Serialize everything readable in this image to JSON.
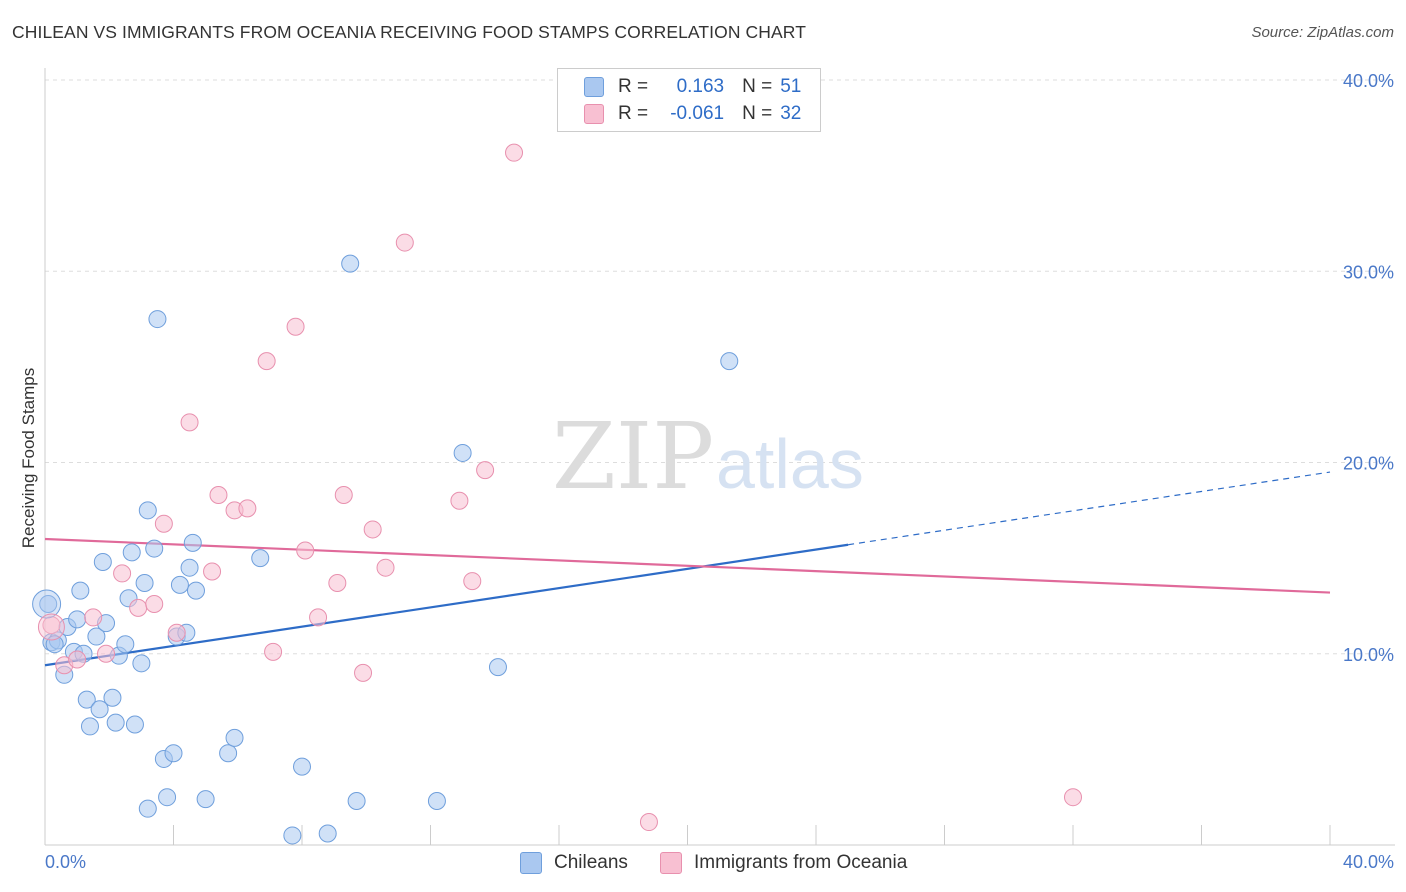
{
  "header": {
    "title": "CHILEAN VS IMMIGRANTS FROM OCEANIA RECEIVING FOOD STAMPS CORRELATION CHART",
    "source": "Source: ZipAtlas.com"
  },
  "watermark": {
    "zip": "ZIP",
    "atlas": "atlas"
  },
  "legend": {
    "rows": [
      {
        "r_label": "R =",
        "r_value": "0.163",
        "n_label": "N =",
        "n_value": "51",
        "color": "#aac8f0",
        "border": "#6f9fdc"
      },
      {
        "r_label": "R =",
        "r_value": "-0.061",
        "n_label": "N =",
        "n_value": "32",
        "color": "#f8c0d2",
        "border": "#e890ae"
      }
    ]
  },
  "bottom_legend": {
    "items": [
      {
        "label": "Chileans",
        "color": "#aac8f0",
        "border": "#6f9fdc"
      },
      {
        "label": "Immigrants from Oceania",
        "color": "#f8c0d2",
        "border": "#e890ae"
      }
    ]
  },
  "chart_data": {
    "type": "scatter",
    "title": "CHILEAN VS IMMIGRANTS FROM OCEANIA RECEIVING FOOD STAMPS CORRELATION CHART",
    "xlabel": "",
    "ylabel": "Receiving Food Stamps",
    "xlim": [
      0,
      40
    ],
    "ylim": [
      0,
      40
    ],
    "x_tick_labels": [
      "0.0%",
      "40.0%"
    ],
    "y_tick_labels": [
      "10.0%",
      "20.0%",
      "30.0%",
      "40.0%"
    ],
    "y_ticks": [
      10,
      20,
      30,
      40
    ],
    "grid": true,
    "series": [
      {
        "name": "Chileans",
        "color": "#aac8f0",
        "edge": "#6f9fdc",
        "points": [
          [
            0.1,
            12.6
          ],
          [
            0.2,
            10.6
          ],
          [
            0.4,
            10.7
          ],
          [
            0.6,
            8.9
          ],
          [
            0.7,
            11.4
          ],
          [
            0.9,
            10.1
          ],
          [
            1.0,
            11.8
          ],
          [
            1.1,
            13.3
          ],
          [
            1.2,
            10.0
          ],
          [
            1.3,
            7.6
          ],
          [
            1.4,
            6.2
          ],
          [
            1.6,
            10.9
          ],
          [
            1.7,
            7.1
          ],
          [
            1.8,
            14.8
          ],
          [
            1.9,
            11.6
          ],
          [
            2.1,
            7.7
          ],
          [
            2.2,
            6.4
          ],
          [
            2.3,
            9.9
          ],
          [
            2.5,
            10.5
          ],
          [
            2.6,
            12.9
          ],
          [
            2.7,
            15.3
          ],
          [
            2.8,
            6.3
          ],
          [
            3.0,
            9.5
          ],
          [
            3.1,
            13.7
          ],
          [
            3.2,
            1.9
          ],
          [
            3.2,
            17.5
          ],
          [
            3.4,
            15.5
          ],
          [
            3.5,
            27.5
          ],
          [
            3.7,
            4.5
          ],
          [
            3.8,
            2.5
          ],
          [
            4.0,
            4.8
          ],
          [
            4.1,
            10.9
          ],
          [
            4.2,
            13.6
          ],
          [
            4.4,
            11.1
          ],
          [
            4.5,
            14.5
          ],
          [
            4.6,
            15.8
          ],
          [
            4.7,
            13.3
          ],
          [
            5.0,
            2.4
          ],
          [
            5.7,
            4.8
          ],
          [
            5.9,
            5.6
          ],
          [
            6.7,
            15.0
          ],
          [
            7.7,
            0.5
          ],
          [
            8.0,
            4.1
          ],
          [
            8.8,
            0.6
          ],
          [
            9.5,
            30.4
          ],
          [
            9.7,
            2.3
          ],
          [
            12.2,
            2.3
          ],
          [
            13.0,
            20.5
          ],
          [
            14.1,
            9.3
          ],
          [
            21.3,
            25.3
          ],
          [
            0.3,
            10.5
          ]
        ]
      },
      {
        "name": "Immigrants from Oceania",
        "color": "#f8c0d2",
        "edge": "#e890ae",
        "points": [
          [
            0.2,
            11.5
          ],
          [
            0.6,
            9.4
          ],
          [
            1.0,
            9.7
          ],
          [
            1.5,
            11.9
          ],
          [
            1.9,
            10.0
          ],
          [
            2.4,
            14.2
          ],
          [
            2.9,
            12.4
          ],
          [
            3.4,
            12.6
          ],
          [
            3.7,
            16.8
          ],
          [
            4.1,
            11.1
          ],
          [
            4.5,
            22.1
          ],
          [
            5.2,
            14.3
          ],
          [
            5.4,
            18.3
          ],
          [
            5.9,
            17.5
          ],
          [
            6.3,
            17.6
          ],
          [
            6.9,
            25.3
          ],
          [
            7.1,
            10.1
          ],
          [
            7.8,
            27.1
          ],
          [
            8.1,
            15.4
          ],
          [
            8.5,
            11.9
          ],
          [
            9.1,
            13.7
          ],
          [
            9.3,
            18.3
          ],
          [
            9.9,
            9.0
          ],
          [
            10.2,
            16.5
          ],
          [
            10.6,
            14.5
          ],
          [
            11.2,
            31.5
          ],
          [
            12.9,
            18.0
          ],
          [
            13.3,
            13.8
          ],
          [
            13.7,
            19.6
          ],
          [
            14.6,
            36.2
          ],
          [
            18.8,
            1.2
          ],
          [
            32.0,
            2.5
          ]
        ]
      }
    ],
    "trend_lines": [
      {
        "series": "Chileans",
        "color": "#2e6cc7",
        "x0": 0,
        "y0": 9.4,
        "x1": 25.0,
        "y1": 15.7,
        "dashed_to": 40,
        "dashed_y": 19.5
      },
      {
        "series": "Immigrants from Oceania",
        "color": "#e06a9a",
        "x0": 0,
        "y0": 16.0,
        "x1": 40,
        "y1": 13.2
      }
    ]
  }
}
